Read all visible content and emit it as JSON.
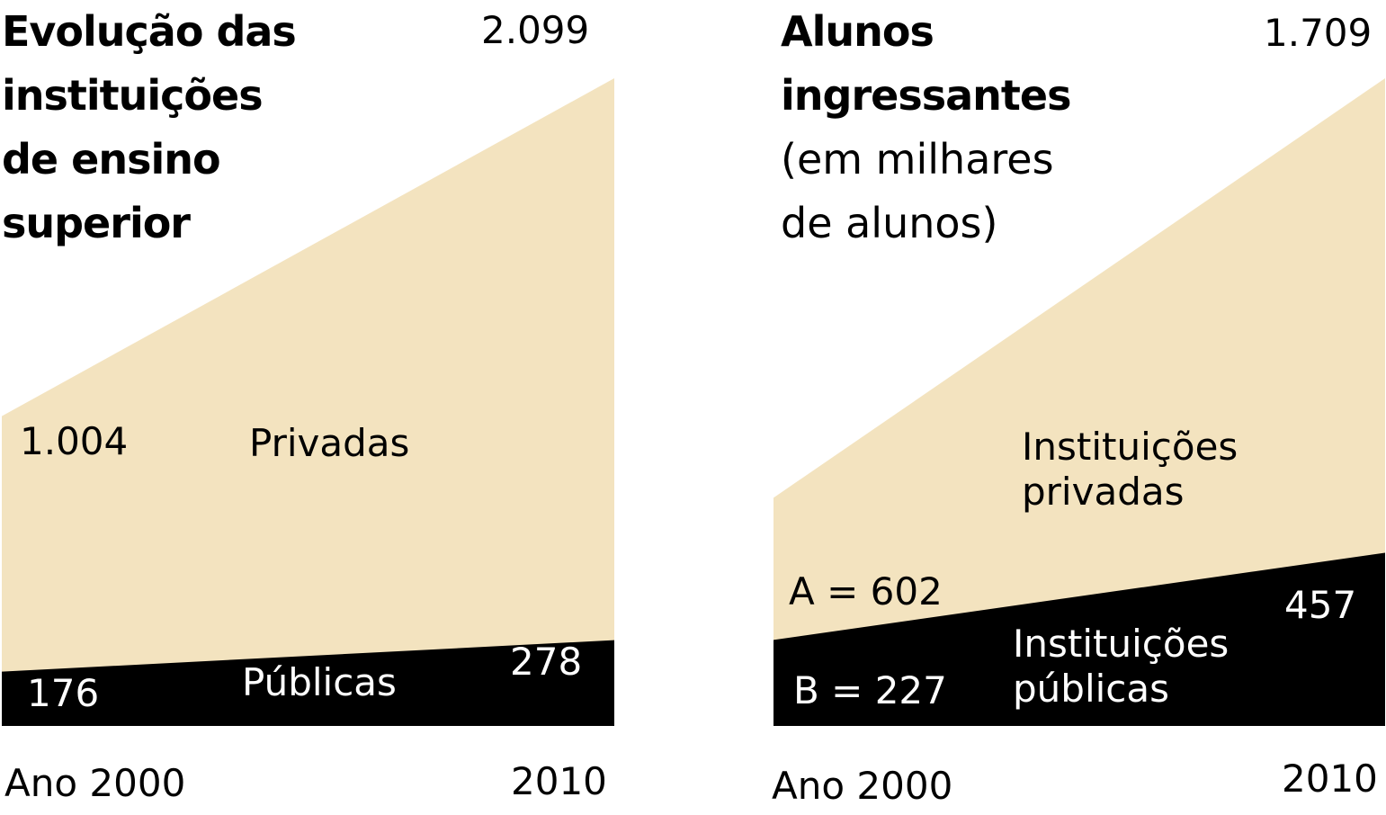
{
  "chart_data": [
    {
      "type": "area",
      "title": "Evolução das instituições de ensino superior",
      "categories": [
        "Ano 2000",
        "2010"
      ],
      "series": [
        {
          "name": "Privadas",
          "color": "#f3e3bf",
          "values": [
            1004,
            2099
          ],
          "value_labels": [
            "1.004",
            "2.099"
          ]
        },
        {
          "name": "Públicas",
          "color": "#000000",
          "values": [
            176,
            278
          ]
        }
      ]
    },
    {
      "type": "area",
      "title": "Alunos ingressantes",
      "subtitle": "(em milhares de alunos)",
      "categories": [
        "Ano 2000",
        "2010"
      ],
      "series": [
        {
          "name": "Instituições privadas",
          "color": "#f3e3bf",
          "values": [
            602,
            1709
          ],
          "value_labels": [
            "A = 602",
            "1.709"
          ]
        },
        {
          "name": "Instituições públicas",
          "color": "#000000",
          "values": [
            227,
            457
          ],
          "value_labels": [
            "B = 227",
            "457"
          ]
        }
      ]
    }
  ]
}
